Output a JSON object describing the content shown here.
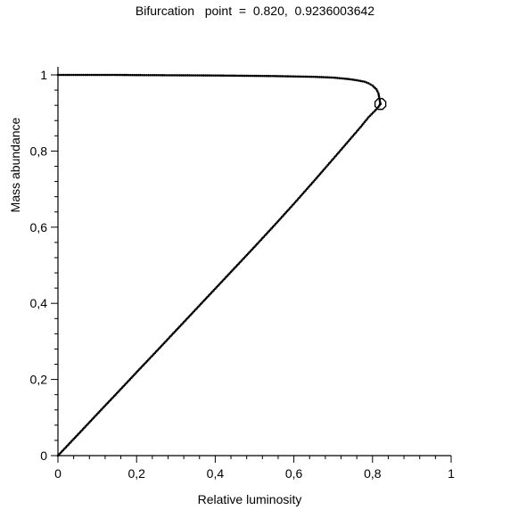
{
  "chart_data": {
    "type": "scatter",
    "title": "Bifurcation   point  =  0.820,  0.9236003642",
    "xlabel": "Relative luminosity",
    "ylabel": "Mass abundance",
    "xlim": [
      0,
      1
    ],
    "ylim": [
      0,
      1
    ],
    "x_ticks": [
      0,
      0.2,
      0.4,
      0.6,
      0.8,
      1
    ],
    "x_tick_labels": [
      "0",
      "0,2",
      "0,4",
      "0,6",
      "0,8",
      "1"
    ],
    "y_ticks": [
      0,
      0.2,
      0.4,
      0.6,
      0.8,
      1
    ],
    "y_tick_labels": [
      "0",
      "0,2",
      "0,4",
      "0,6",
      "0,8",
      "1"
    ],
    "grid": false,
    "series": [
      {
        "x": [
          0,
          0.05,
          0.1,
          0.15,
          0.2,
          0.25,
          0.3,
          0.35,
          0.4,
          0.45,
          0.5,
          0.55,
          0.6,
          0.65,
          0.7,
          0.72,
          0.74,
          0.76,
          0.78,
          0.79,
          0.8,
          0.81,
          0.815,
          0.82
        ],
        "y": [
          1,
          1,
          1,
          1,
          0.9995,
          0.9993,
          0.999,
          0.9988,
          0.9985,
          0.998,
          0.9975,
          0.997,
          0.996,
          0.995,
          0.993,
          0.991,
          0.989,
          0.986,
          0.982,
          0.978,
          0.972,
          0.962,
          0.952,
          0.9236
        ]
      },
      {
        "x": [
          0,
          0.05,
          0.1,
          0.15,
          0.2,
          0.25,
          0.3,
          0.35,
          0.4,
          0.45,
          0.5,
          0.55,
          0.6,
          0.65,
          0.7,
          0.74,
          0.77,
          0.79,
          0.805,
          0.815,
          0.82
        ],
        "y": [
          0,
          0.0545,
          0.1095,
          0.164,
          0.219,
          0.2735,
          0.3285,
          0.3835,
          0.4385,
          0.4935,
          0.5485,
          0.6045,
          0.6615,
          0.72,
          0.7795,
          0.8275,
          0.8635,
          0.889,
          0.9045,
          0.916,
          0.9236
        ]
      }
    ],
    "bifurcation_point": {
      "x": 0.82,
      "y": 0.9236003642
    }
  }
}
